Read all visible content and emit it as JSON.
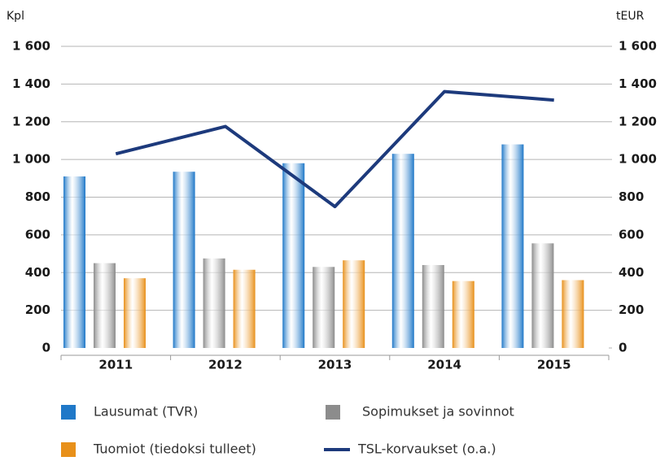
{
  "chart_data": {
    "type": "bar",
    "y_axis_label": "Kpl",
    "y2_axis_label": "tEUR",
    "categories": [
      "2011",
      "2012",
      "2013",
      "2014",
      "2015"
    ],
    "series": [
      {
        "name": "Lausumat (TVR)",
        "color": "#1f78c8",
        "type": "bar",
        "values": [
          910,
          935,
          980,
          1030,
          1080
        ]
      },
      {
        "name": "Sopimukset ja sovinnot",
        "color": "#8c8c8c",
        "type": "bar",
        "values": [
          450,
          475,
          430,
          440,
          555
        ]
      },
      {
        "name": "Tuomiot (tiedoksi tulleet)",
        "color": "#e8901a",
        "type": "bar",
        "values": [
          370,
          415,
          465,
          355,
          360
        ]
      },
      {
        "name": "TSL-korvaukset (o.a.)",
        "color": "#1d3a7c",
        "type": "line",
        "axis": "y2",
        "values": [
          1030,
          1175,
          750,
          1360,
          1315
        ]
      }
    ],
    "ylim": [
      0,
      1600
    ],
    "yticks": [
      0,
      200,
      400,
      600,
      800,
      {
        "value": 1000,
        "label": "1 000"
      },
      {
        "value": 1200,
        "label": "1 200"
      },
      {
        "value": 1400,
        "label": "1 400"
      },
      {
        "value": 1600,
        "label": "1 600"
      }
    ],
    "y2lim": [
      0,
      1600
    ],
    "y2ticks": [
      0,
      200,
      400,
      600,
      800,
      {
        "value": 1000,
        "label": "1 000"
      },
      {
        "value": 1200,
        "label": "1 200"
      },
      {
        "value": 1400,
        "label": "1 400"
      },
      {
        "value": 1600,
        "label": "1 600"
      }
    ],
    "grid": true
  }
}
